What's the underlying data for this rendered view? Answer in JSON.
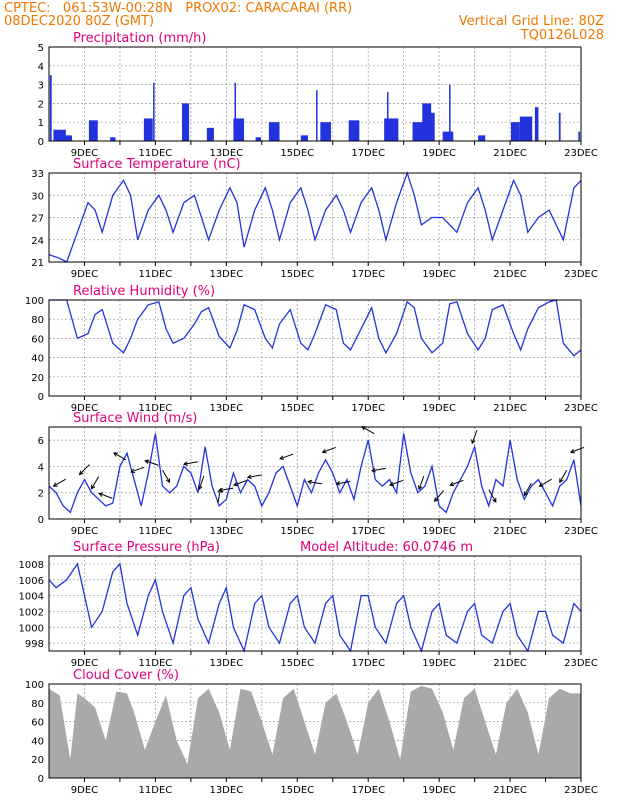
{
  "header": {
    "line1_left": "CPTEC:   061:53W-00:28N   PROX02: CARACARAI (RR)",
    "line2_left": "08DEC2020 80Z (GMT)",
    "line2_right": "Vertical Grid Line: 80Z",
    "line3_right": "TQ0126L028"
  },
  "colors": {
    "header": "#f07800",
    "title": "#e0007a",
    "series": "#2233dd",
    "cloud": "#a9a9a9"
  },
  "x_days": {
    "start": "08DEC2020",
    "end": "23DEC2020",
    "labels": [
      "9DEC",
      "11DEC",
      "13DEC",
      "15DEC",
      "17DEC",
      "19DEC",
      "21DEC",
      "23DEC"
    ]
  },
  "chart_data": [
    {
      "type": "bar",
      "title": "Precipitation (mm/h)",
      "ylim": [
        0,
        5
      ],
      "yticks": [
        "0",
        "1",
        "2",
        "3",
        "4",
        "5"
      ],
      "grid": true,
      "events": [
        {
          "day": 8.05,
          "value": 3.5,
          "width": 0.05
        },
        {
          "day": 8.3,
          "value": 0.6,
          "width": 0.35
        },
        {
          "day": 8.55,
          "value": 0.3,
          "width": 0.2
        },
        {
          "day": 9.25,
          "value": 1.1,
          "width": 0.25
        },
        {
          "day": 9.8,
          "value": 0.2,
          "width": 0.15
        },
        {
          "day": 10.8,
          "value": 1.2,
          "width": 0.25
        },
        {
          "day": 10.95,
          "value": 3.1,
          "width": 0.03
        },
        {
          "day": 11.85,
          "value": 2.0,
          "width": 0.2
        },
        {
          "day": 12.55,
          "value": 0.7,
          "width": 0.2
        },
        {
          "day": 13.25,
          "value": 3.1,
          "width": 0.04
        },
        {
          "day": 13.35,
          "value": 1.2,
          "width": 0.3
        },
        {
          "day": 13.9,
          "value": 0.2,
          "width": 0.15
        },
        {
          "day": 14.35,
          "value": 1.0,
          "width": 0.3
        },
        {
          "day": 15.2,
          "value": 0.3,
          "width": 0.2
        },
        {
          "day": 15.55,
          "value": 2.7,
          "width": 0.04
        },
        {
          "day": 15.8,
          "value": 1.0,
          "width": 0.3
        },
        {
          "day": 16.6,
          "value": 1.1,
          "width": 0.3
        },
        {
          "day": 17.55,
          "value": 2.6,
          "width": 0.04
        },
        {
          "day": 17.65,
          "value": 1.2,
          "width": 0.4
        },
        {
          "day": 18.4,
          "value": 1.0,
          "width": 0.3
        },
        {
          "day": 18.65,
          "value": 2.0,
          "width": 0.25
        },
        {
          "day": 18.8,
          "value": 1.5,
          "width": 0.15
        },
        {
          "day": 19.3,
          "value": 3.0,
          "width": 0.04
        },
        {
          "day": 19.25,
          "value": 0.5,
          "width": 0.3
        },
        {
          "day": 20.2,
          "value": 0.3,
          "width": 0.2
        },
        {
          "day": 21.15,
          "value": 1.0,
          "width": 0.25
        },
        {
          "day": 21.45,
          "value": 1.3,
          "width": 0.35
        },
        {
          "day": 21.75,
          "value": 1.8,
          "width": 0.1
        },
        {
          "day": 22.4,
          "value": 1.5,
          "width": 0.05
        },
        {
          "day": 22.95,
          "value": 0.5,
          "width": 0.05
        }
      ]
    },
    {
      "type": "line",
      "title": "Surface Temperature (nC)",
      "ylim": [
        21,
        33
      ],
      "yticks": [
        "21",
        "24",
        "27",
        "30",
        "33"
      ],
      "grid": true,
      "x": [
        8.0,
        8.3,
        8.5,
        8.8,
        9.1,
        9.3,
        9.5,
        9.8,
        10.1,
        10.3,
        10.5,
        10.8,
        11.1,
        11.3,
        11.5,
        11.8,
        12.1,
        12.3,
        12.5,
        12.8,
        13.1,
        13.3,
        13.5,
        13.8,
        14.1,
        14.3,
        14.5,
        14.8,
        15.1,
        15.3,
        15.5,
        15.8,
        16.1,
        16.3,
        16.5,
        16.8,
        17.1,
        17.3,
        17.5,
        17.8,
        18.1,
        18.3,
        18.5,
        18.8,
        19.1,
        19.3,
        19.5,
        19.8,
        20.1,
        20.3,
        20.5,
        20.8,
        21.1,
        21.3,
        21.5,
        21.8,
        22.1,
        22.3,
        22.5,
        22.8,
        23.0
      ],
      "y": [
        22,
        21.5,
        21.0,
        25,
        29,
        28,
        25,
        30,
        32,
        30,
        24,
        28,
        30,
        28,
        25,
        29,
        30,
        27,
        24,
        28,
        31,
        29,
        23,
        28,
        31,
        28,
        24,
        29,
        31,
        28,
        24,
        28,
        30,
        28,
        25,
        29,
        31,
        28,
        24,
        29,
        33,
        30,
        26,
        27,
        27,
        26,
        25,
        29,
        31,
        28,
        24,
        28,
        32,
        30,
        25,
        27,
        28,
        26,
        24,
        31,
        32
      ]
    },
    {
      "type": "line",
      "title": "Relative Humidity (%)",
      "ylim": [
        0,
        100
      ],
      "yticks": [
        "0",
        "20",
        "40",
        "60",
        "80",
        "100"
      ],
      "grid": true,
      "x": [
        8.0,
        8.3,
        8.5,
        8.8,
        9.1,
        9.3,
        9.5,
        9.8,
        10.1,
        10.3,
        10.5,
        10.8,
        11.1,
        11.3,
        11.5,
        11.8,
        12.1,
        12.3,
        12.5,
        12.8,
        13.1,
        13.3,
        13.5,
        13.8,
        14.1,
        14.3,
        14.5,
        14.8,
        15.1,
        15.3,
        15.5,
        15.8,
        16.1,
        16.3,
        16.5,
        16.8,
        17.1,
        17.3,
        17.5,
        17.8,
        18.1,
        18.3,
        18.5,
        18.8,
        19.1,
        19.3,
        19.5,
        19.8,
        20.1,
        20.3,
        20.5,
        20.8,
        21.1,
        21.3,
        21.5,
        21.8,
        22.1,
        22.3,
        22.5,
        22.8,
        23.0
      ],
      "y": [
        100,
        100,
        100,
        60,
        65,
        85,
        90,
        55,
        45,
        60,
        80,
        95,
        98,
        70,
        55,
        60,
        75,
        88,
        92,
        62,
        50,
        68,
        95,
        90,
        60,
        50,
        75,
        90,
        55,
        48,
        65,
        95,
        90,
        55,
        48,
        70,
        92,
        60,
        45,
        65,
        98,
        92,
        60,
        45,
        55,
        96,
        98,
        65,
        48,
        60,
        90,
        95,
        65,
        48,
        70,
        92,
        98,
        100,
        55,
        42,
        48
      ]
    },
    {
      "type": "line",
      "title": "Surface Wind (m/s)",
      "ylim": [
        0,
        7
      ],
      "yticks": [
        "0",
        "2",
        "4",
        "6"
      ],
      "grid": true,
      "x": [
        8.0,
        8.2,
        8.4,
        8.6,
        8.8,
        9.0,
        9.2,
        9.4,
        9.6,
        9.8,
        10.0,
        10.2,
        10.4,
        10.6,
        10.8,
        11.0,
        11.2,
        11.4,
        11.6,
        11.8,
        12.0,
        12.2,
        12.4,
        12.6,
        12.8,
        13.0,
        13.2,
        13.4,
        13.6,
        13.8,
        14.0,
        14.2,
        14.4,
        14.6,
        14.8,
        15.0,
        15.2,
        15.4,
        15.6,
        15.8,
        16.0,
        16.2,
        16.4,
        16.6,
        16.8,
        17.0,
        17.2,
        17.4,
        17.6,
        17.8,
        18.0,
        18.2,
        18.4,
        18.6,
        18.8,
        19.0,
        19.2,
        19.4,
        19.6,
        19.8,
        20.0,
        20.2,
        20.4,
        20.6,
        20.8,
        21.0,
        21.2,
        21.4,
        21.6,
        21.8,
        22.0,
        22.2,
        22.4,
        22.6,
        22.8,
        23.0
      ],
      "y": [
        2.5,
        2.0,
        1.0,
        0.5,
        2.0,
        3.0,
        2.0,
        1.5,
        1.0,
        1.2,
        4.0,
        5.0,
        3.0,
        1.0,
        3.5,
        6.5,
        2.5,
        2.0,
        2.5,
        4.0,
        3.5,
        2.0,
        5.5,
        2.5,
        1.0,
        1.5,
        3.5,
        2.0,
        3.0,
        2.5,
        1.0,
        2.0,
        3.5,
        4.0,
        2.5,
        1.0,
        3.0,
        2.0,
        3.5,
        4.5,
        3.5,
        2.0,
        3.0,
        1.5,
        4.0,
        6.0,
        3.0,
        2.5,
        3.0,
        2.0,
        6.5,
        3.5,
        2.0,
        2.5,
        4.0,
        1.0,
        0.5,
        2.0,
        3.0,
        4.0,
        5.5,
        2.5,
        1.0,
        3.0,
        2.5,
        6.0,
        3.0,
        1.5,
        2.5,
        3.0,
        2.0,
        1.0,
        2.5,
        3.0,
        4.5,
        1.0
      ],
      "arrows": [
        {
          "day": 8.3,
          "angle": 210
        },
        {
          "day": 9.0,
          "angle": 225
        },
        {
          "day": 9.3,
          "angle": 240
        },
        {
          "day": 9.6,
          "angle": 160
        },
        {
          "day": 10.0,
          "angle": 150
        },
        {
          "day": 10.5,
          "angle": 200
        },
        {
          "day": 10.9,
          "angle": 160
        },
        {
          "day": 11.3,
          "angle": 300
        },
        {
          "day": 12.0,
          "angle": 190
        },
        {
          "day": 12.3,
          "angle": 250
        },
        {
          "day": 12.8,
          "angle": 80
        },
        {
          "day": 13.0,
          "angle": 190
        },
        {
          "day": 13.4,
          "angle": 200
        },
        {
          "day": 13.8,
          "angle": 190
        },
        {
          "day": 14.7,
          "angle": 200
        },
        {
          "day": 15.5,
          "angle": 170
        },
        {
          "day": 15.9,
          "angle": 200
        },
        {
          "day": 16.3,
          "angle": 190
        },
        {
          "day": 17.0,
          "angle": 150
        },
        {
          "day": 17.3,
          "angle": 190
        },
        {
          "day": 17.8,
          "angle": 200
        },
        {
          "day": 18.5,
          "angle": 250
        },
        {
          "day": 19.0,
          "angle": 230
        },
        {
          "day": 19.5,
          "angle": 200
        },
        {
          "day": 20.0,
          "angle": 250
        },
        {
          "day": 20.5,
          "angle": 300
        },
        {
          "day": 21.5,
          "angle": 240
        },
        {
          "day": 22.0,
          "angle": 210
        },
        {
          "day": 22.5,
          "angle": 240
        },
        {
          "day": 22.9,
          "angle": 200
        }
      ]
    },
    {
      "type": "line",
      "title": "Surface Pressure (hPa)",
      "subtitle": "Model Altitude: 60.0746 m",
      "ylim": [
        997,
        1009
      ],
      "yticks": [
        "998",
        "1000",
        "1002",
        "1004",
        "1006",
        "1008"
      ],
      "grid": true,
      "x": [
        8.0,
        8.2,
        8.5,
        8.8,
        9.0,
        9.2,
        9.5,
        9.8,
        10.0,
        10.2,
        10.5,
        10.8,
        11.0,
        11.2,
        11.5,
        11.8,
        12.0,
        12.2,
        12.5,
        12.8,
        13.0,
        13.2,
        13.5,
        13.8,
        14.0,
        14.2,
        14.5,
        14.8,
        15.0,
        15.2,
        15.5,
        15.8,
        16.0,
        16.2,
        16.5,
        16.8,
        17.0,
        17.2,
        17.5,
        17.8,
        18.0,
        18.2,
        18.5,
        18.8,
        19.0,
        19.2,
        19.5,
        19.8,
        20.0,
        20.2,
        20.5,
        20.8,
        21.0,
        21.2,
        21.5,
        21.8,
        22.0,
        22.2,
        22.5,
        22.8,
        23.0
      ],
      "y": [
        1006,
        1005,
        1006,
        1008,
        1004,
        1000,
        1002,
        1007,
        1008,
        1003,
        999,
        1004,
        1006,
        1002,
        998,
        1004,
        1005,
        1001,
        998,
        1003,
        1005,
        1000,
        997,
        1003,
        1004,
        1000,
        998,
        1003,
        1004,
        1000,
        998,
        1003,
        1004,
        999,
        997,
        1004,
        1004,
        1000,
        998,
        1003,
        1004,
        1000,
        997,
        1002,
        1003,
        999,
        998,
        1002,
        1003,
        999,
        998,
        1002,
        1003,
        999,
        997,
        1002,
        1002,
        999,
        998,
        1003,
        1002
      ]
    },
    {
      "type": "area",
      "title": "Cloud Cover (%)",
      "ylim": [
        0,
        100
      ],
      "yticks": [
        "0",
        "20",
        "40",
        "60",
        "80",
        "100"
      ],
      "grid": true,
      "x": [
        8.0,
        8.3,
        8.6,
        8.8,
        9.0,
        9.3,
        9.6,
        9.9,
        10.2,
        10.4,
        10.7,
        11.0,
        11.3,
        11.6,
        11.9,
        12.2,
        12.5,
        12.8,
        13.1,
        13.4,
        13.7,
        14.0,
        14.3,
        14.6,
        14.9,
        15.2,
        15.5,
        15.8,
        16.1,
        16.4,
        16.7,
        17.0,
        17.3,
        17.6,
        17.9,
        18.2,
        18.5,
        18.8,
        19.1,
        19.4,
        19.7,
        20.0,
        20.3,
        20.6,
        20.9,
        21.2,
        21.5,
        21.8,
        22.1,
        22.4,
        22.7,
        23.0
      ],
      "y": [
        95,
        88,
        20,
        90,
        85,
        75,
        40,
        92,
        90,
        70,
        30,
        60,
        88,
        40,
        15,
        85,
        95,
        70,
        30,
        95,
        92,
        60,
        25,
        85,
        95,
        60,
        25,
        80,
        90,
        60,
        25,
        80,
        95,
        60,
        20,
        92,
        98,
        95,
        70,
        30,
        85,
        95,
        60,
        25,
        80,
        95,
        70,
        25,
        85,
        95,
        90,
        90
      ]
    }
  ]
}
